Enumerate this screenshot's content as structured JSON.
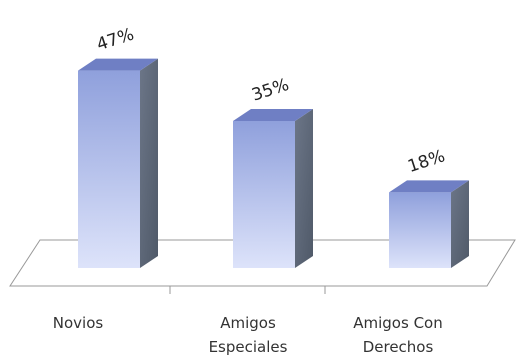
{
  "chart_data": {
    "type": "bar",
    "categories": [
      "Novios",
      "Amigos Especiales",
      "Amigos Con Derechos"
    ],
    "category_lines": [
      [
        "Novios"
      ],
      [
        "Amigos",
        "Especiales"
      ],
      [
        "Amigos Con",
        "Derechos"
      ]
    ],
    "values": [
      47,
      35,
      18
    ],
    "data_labels": [
      "47%",
      "35%",
      "18%"
    ],
    "ylim": [
      0,
      50
    ],
    "title": "",
    "xlabel": "",
    "ylabel": "",
    "grid": false,
    "style": "3d-column",
    "colors": {
      "bar_front_top": "#8fa0dc",
      "bar_front_bottom": "#dde3fa",
      "bar_top": "#6f7fc4",
      "bar_side": "#5d6878",
      "floor_line": "#999999"
    }
  }
}
